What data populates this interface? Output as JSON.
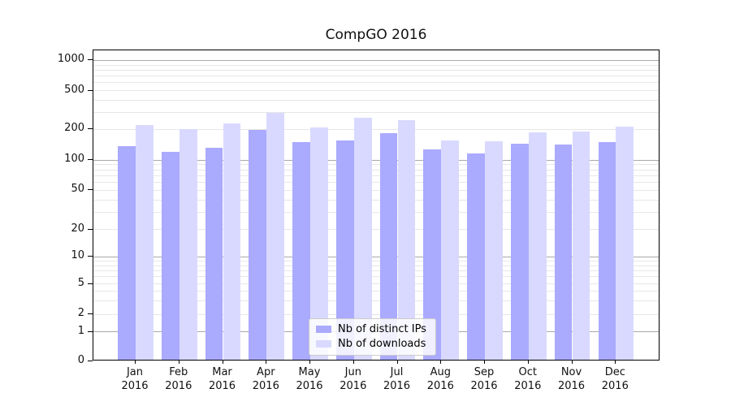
{
  "chart_data": {
    "type": "bar",
    "title": "CompGO 2016",
    "xlabel": "",
    "ylabel": "",
    "yscale": "symlog",
    "ylim": [
      0,
      1260
    ],
    "grid": true,
    "legend_position": "lower center",
    "categories": [
      "Jan 2016",
      "Feb 2016",
      "Mar 2016",
      "Apr 2016",
      "May 2016",
      "Jun 2016",
      "Jul 2016",
      "Aug 2016",
      "Sep 2016",
      "Oct 2016",
      "Nov 2016",
      "Dec 2016"
    ],
    "x_tick_line1": [
      "Jan",
      "Feb",
      "Mar",
      "Apr",
      "May",
      "Jun",
      "Jul",
      "Aug",
      "Sep",
      "Oct",
      "Nov",
      "Dec"
    ],
    "x_tick_line2": [
      "2016",
      "2016",
      "2016",
      "2016",
      "2016",
      "2016",
      "2016",
      "2016",
      "2016",
      "2016",
      "2016",
      "2016"
    ],
    "y_ticks": [
      0,
      1,
      2,
      5,
      10,
      20,
      50,
      100,
      200,
      500,
      1000
    ],
    "series": [
      {
        "name": "Nb of distinct IPs",
        "color": "#aaaaff",
        "values": [
          133,
          117,
          128,
          192,
          146,
          150,
          177,
          122,
          112,
          139,
          138,
          146
        ]
      },
      {
        "name": "Nb of downloads",
        "color": "#d9d9ff",
        "values": [
          212,
          195,
          220,
          285,
          203,
          252,
          242,
          149,
          147,
          181,
          185,
          204
        ]
      }
    ]
  }
}
